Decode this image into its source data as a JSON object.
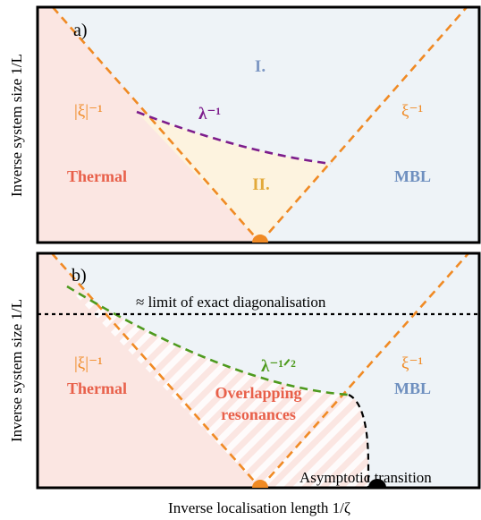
{
  "colors": {
    "thermal_fill": "#fbe6e2",
    "mbl_fill": "#eef3f7",
    "region_ii_fill": "#fdf3df",
    "orange": "#f08a24",
    "purple": "#7d1d8c",
    "green": "#4e9a1e",
    "thermal_text": "#e8604a",
    "mbl_text": "#6e8fbf",
    "region_i_text": "#7e98c4",
    "region_ii_text": "#e2a93a",
    "frame": "#000000"
  },
  "panel_a": {
    "tag": "a)",
    "y_axis_label": "Inverse system size 1/L",
    "region_i": "I.",
    "region_ii": "II.",
    "left_line_label": "|ξ|⁻¹",
    "right_line_label": "ξ⁻¹",
    "crossover_label": "λ⁻¹",
    "thermal_label": "Thermal",
    "mbl_label": "MBL"
  },
  "panel_b": {
    "tag": "b)",
    "y_axis_label": "Inverse system size 1/L",
    "ed_limit_label": "≈ limit of exact diagonalisation",
    "left_line_label": "|ξ|⁻¹",
    "right_line_label": "ξ⁻¹",
    "crossover_label": "λ⁻¹ᐟ²",
    "thermal_label": "Thermal",
    "overlap_label_1": "Overlapping",
    "overlap_label_2": "resonances",
    "mbl_label": "MBL",
    "asymptotic_label": "Asymptotic transition"
  },
  "x_axis_label": "Inverse localisation length 1/ζ"
}
